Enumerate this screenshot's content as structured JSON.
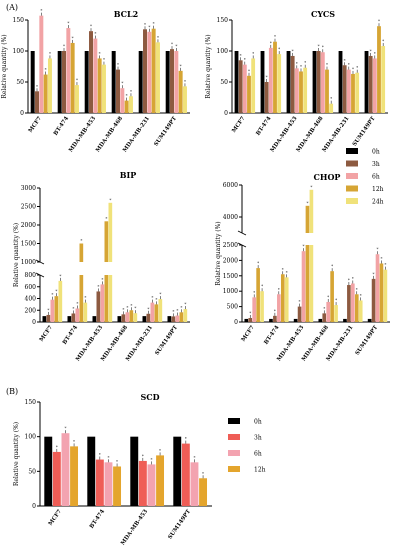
{
  "panel_labels": [
    "(A)",
    "(B)"
  ],
  "colors": {
    "0h": "#000000",
    "3h": "#8d5a40",
    "6h": "#f2a3a5",
    "12h": "#d6a534",
    "24h": "#f0e27a",
    "3h_scd": "#ef5d56",
    "6h_scd": "#f3a3b0",
    "12h_scd": "#e4a52d"
  },
  "legendA": [
    "0h",
    "3h",
    "6h",
    "12h",
    "24h"
  ],
  "legendB": [
    "0h",
    "3h",
    "6h",
    "12h"
  ],
  "chart_data": [
    {
      "id": "bcl2",
      "type": "bar",
      "title": "BCL2",
      "ylabel": "Relative quantity (%)",
      "ylim": [
        0,
        150
      ],
      "yticks": [
        0,
        50,
        100,
        150
      ],
      "categories": [
        "MCF7",
        "BT-474",
        "MDA-MB-453",
        "MDA-MB-468",
        "MDA-MB-231",
        "SUM149PT"
      ],
      "series": [
        {
          "name": "0h",
          "values": [
            100,
            100,
            100,
            100,
            100,
            100
          ]
        },
        {
          "name": "3h",
          "values": [
            35,
            100,
            132,
            70,
            135,
            103
          ]
        },
        {
          "name": "6h",
          "values": [
            157,
            137,
            120,
            40,
            131,
            100
          ]
        },
        {
          "name": "12h",
          "values": [
            62,
            113,
            88,
            20,
            136,
            68
          ]
        },
        {
          "name": "24h",
          "values": [
            88,
            45,
            78,
            27,
            114,
            43
          ]
        }
      ]
    },
    {
      "id": "cycs",
      "type": "bar",
      "title": "CYCS",
      "ylabel": "Relative quantity (%)",
      "ylim": [
        0,
        150
      ],
      "yticks": [
        0,
        50,
        100,
        150
      ],
      "categories": [
        "MCF7",
        "BT-474",
        "MDA-MB-453",
        "MDA-MB-468",
        "MDA-MB-231",
        "SUM149PT"
      ],
      "series": [
        {
          "name": "0h",
          "values": [
            100,
            100,
            100,
            100,
            100,
            100
          ]
        },
        {
          "name": "3h",
          "values": [
            85,
            50,
            92,
            100,
            77,
            92
          ]
        },
        {
          "name": "6h",
          "values": [
            78,
            105,
            72,
            98,
            70,
            88
          ]
        },
        {
          "name": "12h",
          "values": [
            60,
            115,
            67,
            70,
            63,
            140
          ]
        },
        {
          "name": "24h",
          "values": [
            88,
            95,
            73,
            15,
            65,
            108
          ]
        }
      ]
    },
    {
      "id": "bip",
      "type": "bar",
      "title": "BIP",
      "ylabel": "Relative quantity (%)",
      "ylim": [
        0,
        3000
      ],
      "axis_break": {
        "lower": [
          0,
          800
        ],
        "upper": [
          1000,
          3000
        ]
      },
      "yticks_lower": [
        0,
        200,
        400,
        600,
        800
      ],
      "yticks_upper": [
        1000,
        1500,
        2000,
        2500,
        3000
      ],
      "categories": [
        "MCF7",
        "BT-474",
        "MDA-MB-453",
        "MDA-MB-468",
        "MDA-MB-231",
        "SUM149PT"
      ],
      "series": [
        {
          "name": "0h",
          "values": [
            100,
            100,
            100,
            100,
            100,
            100
          ]
        },
        {
          "name": "3h",
          "values": [
            120,
            145,
            520,
            130,
            140,
            95
          ]
        },
        {
          "name": "6h",
          "values": [
            380,
            230,
            640,
            165,
            330,
            110
          ]
        },
        {
          "name": "12h",
          "values": [
            440,
            1500,
            2100,
            200,
            300,
            165
          ]
        },
        {
          "name": "24h",
          "values": [
            700,
            330,
            2600,
            150,
            390,
            220
          ]
        }
      ]
    },
    {
      "id": "chop",
      "type": "bar",
      "title": "CHOP",
      "ylabel": "Relative quantity (%)",
      "ylim": [
        0,
        6000
      ],
      "axis_break": {
        "lower": [
          0,
          2500
        ],
        "upper": [
          3000,
          6000
        ]
      },
      "yticks_lower": [
        0,
        500,
        1000,
        1500,
        2000,
        2500
      ],
      "yticks_upper": [
        4000,
        6000
      ],
      "categories": [
        "MCF7",
        "BT-474",
        "MDA-MB-453",
        "MDA-MB-468",
        "MDA-MB-231",
        "SUM149PT"
      ],
      "series": [
        {
          "name": "0h",
          "values": [
            100,
            100,
            100,
            100,
            100,
            100
          ]
        },
        {
          "name": "3h",
          "values": [
            130,
            200,
            500,
            280,
            1200,
            1400
          ]
        },
        {
          "name": "6h",
          "values": [
            800,
            900,
            2300,
            650,
            1250,
            2200
          ]
        },
        {
          "name": "12h",
          "values": [
            1750,
            1550,
            4700,
            1650,
            900,
            1900
          ]
        },
        {
          "name": "24h",
          "values": [
            1000,
            1450,
            5700,
            550,
            700,
            1700
          ]
        }
      ]
    },
    {
      "id": "scd",
      "type": "bar",
      "title": "SCD",
      "ylabel": "Relative quantity (%)",
      "ylim": [
        0,
        150
      ],
      "yticks": [
        0,
        50,
        100,
        150
      ],
      "categories": [
        "MCF7",
        "BT-474",
        "MDA-MB-453",
        "SUM149PT"
      ],
      "series": [
        {
          "name": "0h",
          "values": [
            100,
            100,
            100,
            100
          ]
        },
        {
          "name": "3h",
          "values": [
            78,
            67,
            65,
            90
          ]
        },
        {
          "name": "6h",
          "values": [
            105,
            63,
            60,
            63
          ]
        },
        {
          "name": "12h",
          "values": [
            86,
            57,
            73,
            40
          ]
        }
      ]
    }
  ]
}
